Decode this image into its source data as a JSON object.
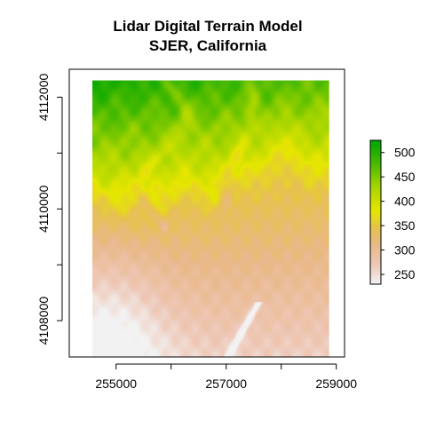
{
  "chart_data": {
    "type": "heatmap",
    "title": "Lidar Digital Terrain Model",
    "subtitle": "SJER, California",
    "xlabel": "",
    "ylabel": "",
    "xlim": [
      254150,
      259150
    ],
    "ylim": [
      4107350,
      4112500
    ],
    "raster_extent": {
      "x": [
        254570,
        258870
      ],
      "y": [
        4107350,
        4112300
      ]
    },
    "x_ticks": [
      255000,
      256000,
      257000,
      258000,
      259000
    ],
    "x_tick_labels": [
      "255000",
      "",
      "257000",
      "",
      "259000"
    ],
    "y_ticks": [
      4108000,
      4109000,
      4110000,
      4111000,
      4112000
    ],
    "y_tick_labels": [
      "4108000",
      "",
      "4110000",
      "",
      "4112000"
    ],
    "legend": {
      "position": "right",
      "range": [
        230,
        525
      ],
      "ticks": [
        250,
        300,
        350,
        400,
        450,
        500
      ],
      "tick_labels": [
        "250",
        "300",
        "350",
        "400",
        "450",
        "500"
      ],
      "colors": [
        {
          "value": 230,
          "color": "#f2f2f2"
        },
        {
          "value": 270,
          "color": "#eec7b6"
        },
        {
          "value": 310,
          "color": "#e9b98a"
        },
        {
          "value": 345,
          "color": "#e6c24e"
        },
        {
          "value": 380,
          "color": "#e6e600"
        },
        {
          "value": 430,
          "color": "#a6d500"
        },
        {
          "value": 480,
          "color": "#45b900"
        },
        {
          "value": 525,
          "color": "#00a600"
        }
      ]
    },
    "grid": false
  }
}
